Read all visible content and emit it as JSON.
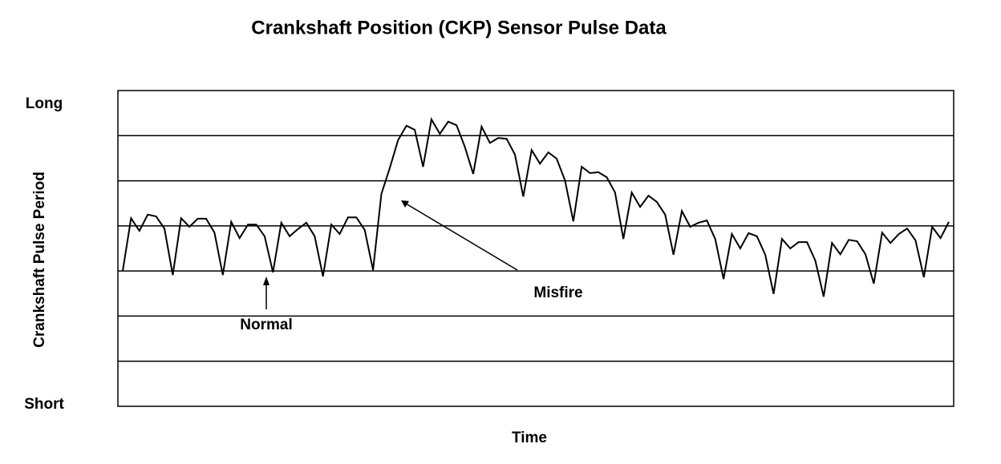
{
  "chart_data": {
    "type": "line",
    "title": "Crankshaft Position (CKP) Sensor Pulse Data",
    "x_label": "Time",
    "y_label": "Crankshaft Pulse Period",
    "ylim": [
      0,
      7
    ],
    "yticks": [
      {
        "value": 0,
        "label": "Short"
      },
      {
        "value": 7,
        "label": "Long"
      }
    ],
    "grid_lines": [
      1,
      2,
      3,
      4,
      5,
      6
    ],
    "grid": true,
    "color": "#000000",
    "annotations": [
      {
        "text": "Normal"
      },
      {
        "text": "Misfire"
      }
    ],
    "categories": [
      null,
      null,
      null,
      null,
      null,
      null,
      null,
      null,
      null,
      null,
      null,
      null,
      null,
      null,
      null,
      null,
      null,
      null,
      null,
      null,
      null,
      null,
      null,
      null,
      null,
      null,
      null,
      null,
      null,
      null,
      null,
      null,
      null,
      null,
      null,
      null,
      null,
      null,
      null,
      null,
      null,
      null,
      null,
      null,
      null,
      null,
      null,
      null,
      null,
      null,
      null,
      null,
      null,
      null,
      null,
      null,
      null,
      null,
      null,
      null,
      null,
      null,
      null,
      null,
      null,
      null,
      null,
      null,
      null,
      null,
      null,
      null,
      null,
      null,
      null,
      null,
      null,
      null,
      null,
      null,
      null,
      null,
      null,
      null,
      null,
      null,
      null,
      null,
      null,
      null,
      null,
      null,
      null,
      null,
      null,
      null,
      null,
      null,
      null,
      null
    ],
    "values": [
      3.0,
      4.17,
      3.89,
      4.25,
      4.21,
      3.94,
      2.91,
      4.17,
      3.98,
      4.16,
      4.16,
      3.85,
      2.91,
      4.09,
      3.73,
      4.03,
      4.03,
      3.77,
      2.97,
      4.07,
      3.77,
      3.93,
      4.07,
      3.77,
      2.88,
      4.03,
      3.82,
      4.19,
      4.19,
      3.91,
      3.02,
      4.71,
      5.28,
      5.9,
      6.22,
      6.13,
      5.31,
      6.36,
      6.04,
      6.31,
      6.23,
      5.75,
      5.15,
      6.2,
      5.84,
      5.95,
      5.93,
      5.58,
      4.65,
      5.68,
      5.38,
      5.63,
      5.49,
      5.01,
      4.1,
      5.31,
      5.17,
      5.19,
      5.08,
      4.74,
      3.71,
      4.74,
      4.42,
      4.67,
      4.53,
      4.25,
      3.36,
      4.33,
      3.98,
      4.07,
      4.12,
      3.71,
      2.82,
      3.82,
      3.5,
      3.84,
      3.77,
      3.36,
      2.49,
      3.71,
      3.5,
      3.64,
      3.64,
      3.23,
      2.43,
      3.62,
      3.37,
      3.69,
      3.66,
      3.37,
      2.72,
      3.85,
      3.62,
      3.82,
      3.94,
      3.68,
      2.86,
      3.98,
      3.73,
      4.09
    ]
  }
}
